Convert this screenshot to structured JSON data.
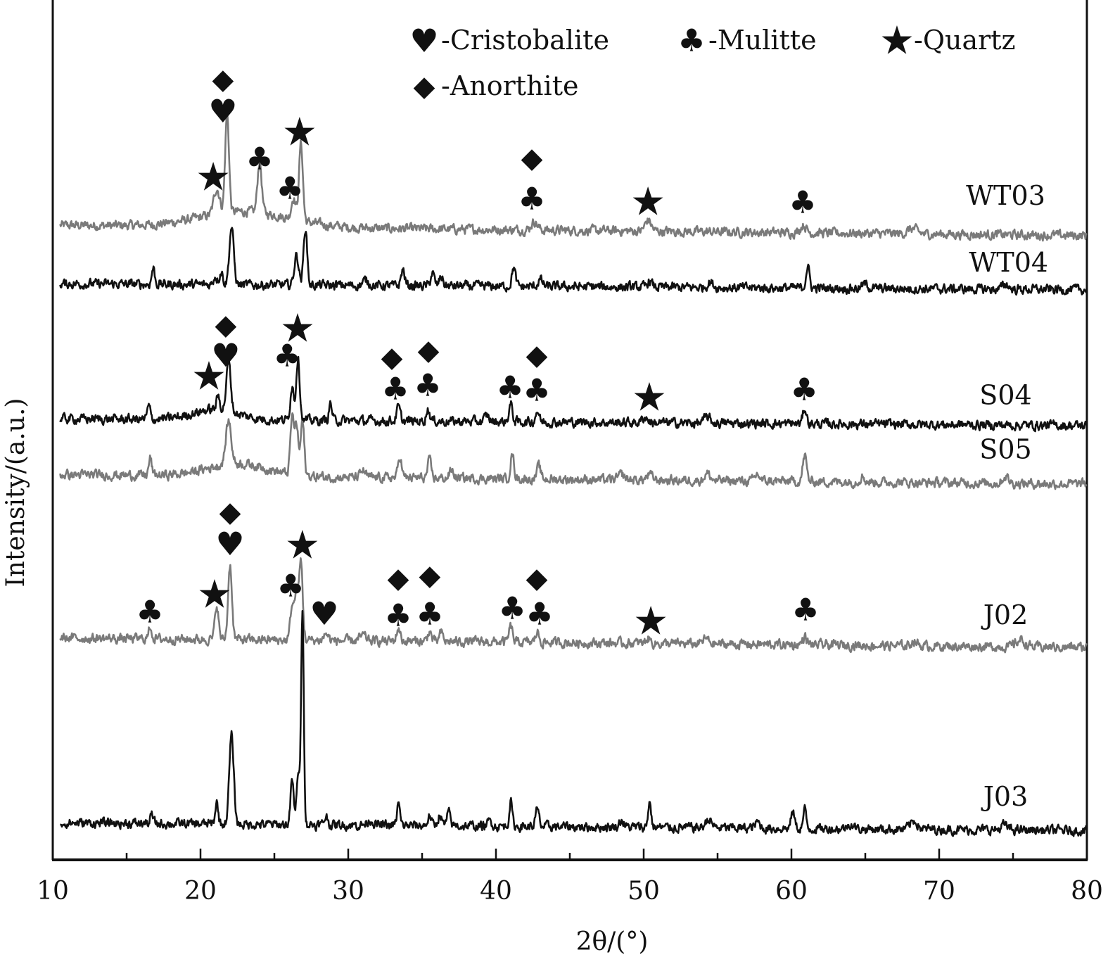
{
  "chart_data": {
    "type": "line",
    "title": "",
    "xlabel": "2θ/(°)",
    "ylabel": "Intensity/(a.u.)",
    "xlim": [
      10,
      80
    ],
    "ylim": [
      0,
      100
    ],
    "x_ticks_major": [
      10,
      20,
      30,
      40,
      50,
      60,
      70,
      80
    ],
    "x_tick_labels": [
      "10",
      "20",
      "30",
      "40",
      "50",
      "60",
      "70",
      "80"
    ],
    "x_ticks_minor": [
      15,
      25,
      35,
      45,
      55,
      65,
      75
    ],
    "grid": false,
    "legend": {
      "placement": "top-right",
      "entries": [
        {
          "symbol": "♥",
          "label": "-Cristobalite"
        },
        {
          "symbol": "♣",
          "label": "-Mulitte"
        },
        {
          "symbol": "★",
          "label": "-Quartz"
        },
        {
          "symbol": "◆",
          "label": "-Anorthite"
        }
      ]
    },
    "series": [
      {
        "name": "WT03",
        "color": "#7a7a7a",
        "baseline": [
          73.8,
          72.6
        ],
        "label_pos": [
          74.5,
          76.2
        ],
        "peaks": [
          [
            23.0,
            1.8,
            3.0
          ],
          [
            21.1,
            3,
            0.2
          ],
          [
            21.8,
            11.5,
            0.13
          ],
          [
            24.0,
            6,
            0.14
          ],
          [
            26.3,
            2.5,
            0.15
          ],
          [
            26.8,
            9,
            0.13
          ],
          [
            42.6,
            1.0,
            0.2
          ],
          [
            50.3,
            1.3,
            0.2
          ],
          [
            60.8,
            0.9,
            0.2
          ],
          [
            68.2,
            0.6,
            0.3
          ]
        ]
      },
      {
        "name": "WT04",
        "color": "#111111",
        "baseline": [
          67.0,
          66.3
        ],
        "label_pos": [
          74.7,
          68.4
        ],
        "peaks": [
          [
            16.8,
            1.9,
            0.1
          ],
          [
            21.0,
            1.0,
            0.12
          ],
          [
            21.4,
            1.5,
            0.12
          ],
          [
            22.1,
            6.7,
            0.15
          ],
          [
            26.5,
            3.5,
            0.15
          ],
          [
            27.1,
            6.7,
            0.12
          ],
          [
            31.2,
            0.6,
            0.2
          ],
          [
            33.7,
            1.9,
            0.12
          ],
          [
            35.7,
            1.5,
            0.12
          ],
          [
            36.3,
            1.1,
            0.12
          ],
          [
            41.2,
            2.2,
            0.12
          ],
          [
            43.0,
            0.8,
            0.15
          ],
          [
            50.4,
            0.7,
            0.15
          ],
          [
            54.5,
            0.6,
            0.2
          ],
          [
            61.1,
            2.5,
            0.12
          ],
          [
            65.0,
            0.5,
            0.2
          ],
          [
            74.5,
            0.6,
            0.2
          ]
        ]
      },
      {
        "name": "S04",
        "color": "#111111",
        "baseline": [
          51.3,
          50.5
        ],
        "label_pos": [
          74.5,
          53.0
        ],
        "peaks": [
          [
            21.0,
            1.2,
            1.5
          ],
          [
            16.5,
            1.5,
            0.1
          ],
          [
            21.2,
            1.5,
            0.12
          ],
          [
            21.9,
            5.7,
            0.15
          ],
          [
            26.2,
            4.0,
            0.12
          ],
          [
            26.6,
            7.3,
            0.12
          ],
          [
            28.8,
            2.0,
            0.1
          ],
          [
            33.4,
            1.6,
            0.12
          ],
          [
            35.4,
            1.4,
            0.12
          ],
          [
            39.4,
            0.7,
            0.15
          ],
          [
            41.0,
            2.0,
            0.12
          ],
          [
            42.8,
            1.3,
            0.12
          ],
          [
            50.1,
            0.6,
            0.2
          ],
          [
            54.3,
            0.7,
            0.2
          ],
          [
            60.9,
            1.8,
            0.12
          ]
        ]
      },
      {
        "name": "S05",
        "color": "#7a7a7a",
        "baseline": [
          44.8,
          43.7
        ],
        "label_pos": [
          74.5,
          46.7
        ],
        "peaks": [
          [
            22.5,
            1.5,
            2.0
          ],
          [
            16.6,
            2.0,
            0.1
          ],
          [
            21.9,
            5.0,
            0.18
          ],
          [
            26.2,
            6.5,
            0.12
          ],
          [
            26.5,
            5.8,
            0.12
          ],
          [
            26.9,
            6.3,
            0.12
          ],
          [
            31.0,
            0.8,
            0.15
          ],
          [
            33.5,
            2.5,
            0.12
          ],
          [
            35.5,
            2.0,
            0.12
          ],
          [
            37.0,
            0.9,
            0.15
          ],
          [
            41.1,
            2.8,
            0.12
          ],
          [
            42.9,
            1.5,
            0.12
          ],
          [
            48.5,
            0.6,
            0.2
          ],
          [
            50.4,
            0.6,
            0.2
          ],
          [
            54.3,
            0.8,
            0.2
          ],
          [
            57.7,
            0.8,
            0.15
          ],
          [
            60.9,
            3.0,
            0.13
          ],
          [
            64.8,
            0.7,
            0.15
          ],
          [
            74.5,
            0.8,
            0.2
          ]
        ]
      },
      {
        "name": "J02",
        "color": "#7a7a7a",
        "baseline": [
          25.8,
          24.7
        ],
        "label_pos": [
          74.5,
          27.4
        ],
        "peaks": [
          [
            16.6,
            1.5,
            0.1
          ],
          [
            21.1,
            4.0,
            0.12
          ],
          [
            22.0,
            8.7,
            0.13
          ],
          [
            26.2,
            4.0,
            0.12
          ],
          [
            26.5,
            5.5,
            0.12
          ],
          [
            26.8,
            9.0,
            0.12
          ],
          [
            28.5,
            0.8,
            0.15
          ],
          [
            31.0,
            0.6,
            0.2
          ],
          [
            33.4,
            1.5,
            0.12
          ],
          [
            35.5,
            1.2,
            0.12
          ],
          [
            36.3,
            1.0,
            0.12
          ],
          [
            41.0,
            1.8,
            0.12
          ],
          [
            42.8,
            1.2,
            0.12
          ],
          [
            50.3,
            0.6,
            0.15
          ],
          [
            54.2,
            0.6,
            0.2
          ],
          [
            60.9,
            0.9,
            0.15
          ],
          [
            68.3,
            0.6,
            0.2
          ],
          [
            75.5,
            0.8,
            0.3
          ]
        ]
      },
      {
        "name": "J03",
        "color": "#111111",
        "baseline": [
          4.3,
          3.4
        ],
        "label_pos": [
          74.5,
          6.3
        ],
        "peaks": [
          [
            16.7,
            1.0,
            0.1
          ],
          [
            21.1,
            2.5,
            0.1
          ],
          [
            22.1,
            10.3,
            0.15
          ],
          [
            26.2,
            5.3,
            0.1
          ],
          [
            26.6,
            6.0,
            0.1
          ],
          [
            26.9,
            25.4,
            0.09
          ],
          [
            28.5,
            1.0,
            0.12
          ],
          [
            31.5,
            0.6,
            0.2
          ],
          [
            33.4,
            2.5,
            0.1
          ],
          [
            35.5,
            1.1,
            0.12
          ],
          [
            36.2,
            1.3,
            0.12
          ],
          [
            36.8,
            1.5,
            0.12
          ],
          [
            39.6,
            0.6,
            0.15
          ],
          [
            41.0,
            2.9,
            0.1
          ],
          [
            42.8,
            1.9,
            0.12
          ],
          [
            48.5,
            0.8,
            0.15
          ],
          [
            50.4,
            3.0,
            0.1
          ],
          [
            54.4,
            1.0,
            0.2
          ],
          [
            57.7,
            0.7,
            0.15
          ],
          [
            60.1,
            1.9,
            0.12
          ],
          [
            60.9,
            2.2,
            0.1
          ],
          [
            64.0,
            0.6,
            0.2
          ],
          [
            68.3,
            1.0,
            0.25
          ],
          [
            74.4,
            0.6,
            0.2
          ]
        ]
      }
    ],
    "annotations": [
      {
        "series": "WT03",
        "symbol": "◆",
        "x": 21.52,
        "y": 90.75
      },
      {
        "series": "WT03",
        "symbol": "♥",
        "x": 21.52,
        "y": 87.07
      },
      {
        "series": "WT03",
        "symbol": "★",
        "x": 20.86,
        "y": 79.38
      },
      {
        "series": "WT03",
        "symbol": "♣",
        "x": 24.0,
        "y": 81.51
      },
      {
        "series": "WT03",
        "symbol": "♣",
        "x": 26.05,
        "y": 78.07
      },
      {
        "series": "WT03",
        "symbol": "★",
        "x": 26.71,
        "y": 84.62
      },
      {
        "series": "WT03",
        "symbol": "◆",
        "x": 42.43,
        "y": 81.59
      },
      {
        "series": "WT03",
        "symbol": "♣",
        "x": 42.43,
        "y": 76.84
      },
      {
        "series": "WT03",
        "symbol": "★",
        "x": 50.29,
        "y": 76.51
      },
      {
        "series": "WT03",
        "symbol": "♣",
        "x": 60.76,
        "y": 76.43
      },
      {
        "series": "S04",
        "symbol": "◆",
        "x": 21.71,
        "y": 62.19
      },
      {
        "series": "S04",
        "symbol": "♥",
        "x": 21.71,
        "y": 58.67
      },
      {
        "series": "S04",
        "symbol": "★",
        "x": 20.57,
        "y": 56.22
      },
      {
        "series": "S04",
        "symbol": "♣",
        "x": 25.86,
        "y": 58.59
      },
      {
        "series": "S04",
        "symbol": "★",
        "x": 26.57,
        "y": 61.78
      },
      {
        "series": "S04",
        "symbol": "◆",
        "x": 32.95,
        "y": 58.43
      },
      {
        "series": "S04",
        "symbol": "♣",
        "x": 33.19,
        "y": 54.75
      },
      {
        "series": "S04",
        "symbol": "◆",
        "x": 35.43,
        "y": 59.25
      },
      {
        "series": "S04",
        "symbol": "♣",
        "x": 35.38,
        "y": 55.16
      },
      {
        "series": "S04",
        "symbol": "♣",
        "x": 40.95,
        "y": 54.91
      },
      {
        "series": "S04",
        "symbol": "◆",
        "x": 42.76,
        "y": 58.67
      },
      {
        "series": "S04",
        "symbol": "♣",
        "x": 42.76,
        "y": 54.58
      },
      {
        "series": "S04",
        "symbol": "★",
        "x": 50.38,
        "y": 53.76
      },
      {
        "series": "S04",
        "symbol": "♣",
        "x": 60.86,
        "y": 54.66
      },
      {
        "series": "J02",
        "symbol": "♣",
        "x": 16.57,
        "y": 28.81
      },
      {
        "series": "J02",
        "symbol": "★",
        "x": 20.95,
        "y": 30.85
      },
      {
        "series": "J02",
        "symbol": "◆",
        "x": 22.0,
        "y": 40.43
      },
      {
        "series": "J02",
        "symbol": "♥",
        "x": 22.0,
        "y": 36.74
      },
      {
        "series": "J02",
        "symbol": "♣",
        "x": 26.1,
        "y": 31.83
      },
      {
        "series": "J02",
        "symbol": "★",
        "x": 26.9,
        "y": 36.58
      },
      {
        "series": "J02",
        "symbol": "♥",
        "x": 28.38,
        "y": 28.64
      },
      {
        "series": "J02",
        "symbol": "◆",
        "x": 33.38,
        "y": 32.73
      },
      {
        "series": "J02",
        "symbol": "♣",
        "x": 33.38,
        "y": 28.4
      },
      {
        "series": "J02",
        "symbol": "◆",
        "x": 35.52,
        "y": 33.06
      },
      {
        "series": "J02",
        "symbol": "♣",
        "x": 35.52,
        "y": 28.56
      },
      {
        "series": "J02",
        "symbol": "♣",
        "x": 41.1,
        "y": 29.21
      },
      {
        "series": "J02",
        "symbol": "◆",
        "x": 42.76,
        "y": 32.73
      },
      {
        "series": "J02",
        "symbol": "♣",
        "x": 42.95,
        "y": 28.56
      },
      {
        "series": "J02",
        "symbol": "★",
        "x": 50.48,
        "y": 27.74
      },
      {
        "series": "J02",
        "symbol": "♣",
        "x": 60.95,
        "y": 29.05
      }
    ]
  }
}
